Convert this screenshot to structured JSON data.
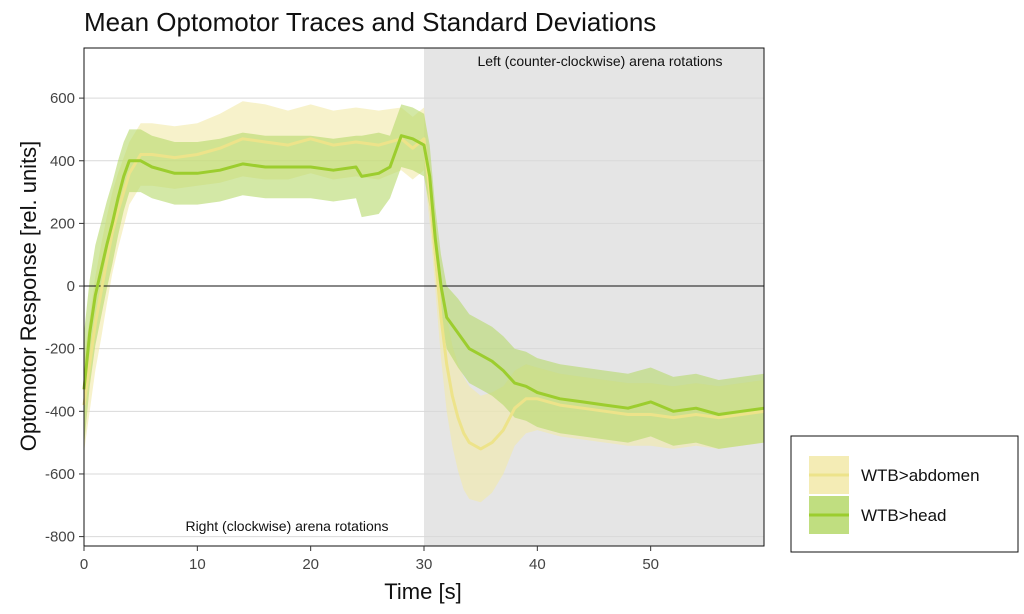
{
  "chart_data": {
    "type": "line",
    "title": "Mean Optomotor Traces and Standard Deviations",
    "xlabel": "Time [s]",
    "ylabel": "Optomotor Response [rel. units]",
    "xlim": [
      0,
      60
    ],
    "ylim": [
      -830,
      760
    ],
    "xticks": [
      0,
      10,
      20,
      30,
      40,
      50
    ],
    "yticks": [
      -800,
      -600,
      -400,
      -200,
      0,
      200,
      400,
      600
    ],
    "grid": true,
    "zero_line": true,
    "legend_position": "right",
    "shaded_region": {
      "x_start": 30,
      "x_end": 60,
      "color": "#e5e5e5"
    },
    "annotations": {
      "right_rotation": "Right (clockwise) arena rotations",
      "left_rotation": "Left (counter-clockwise) arena rotations"
    },
    "series": [
      {
        "name": "WTB>abdomen",
        "line_color": "#ede38a",
        "band_color": "#f2e9a8",
        "x": [
          0,
          0.5,
          1,
          1.5,
          2,
          2.5,
          3,
          3.5,
          4,
          5,
          6,
          8,
          10,
          12,
          14,
          16,
          18,
          20,
          22,
          24,
          26,
          28,
          29,
          30,
          30.5,
          31,
          31.5,
          32,
          32.5,
          33,
          33.5,
          34,
          35,
          36,
          37,
          38,
          39,
          40,
          42,
          44,
          46,
          48,
          50,
          52,
          54,
          56,
          58,
          60
        ],
        "mean": [
          -380,
          -250,
          -120,
          -20,
          80,
          170,
          240,
          300,
          360,
          420,
          420,
          410,
          420,
          440,
          470,
          460,
          450,
          470,
          450,
          460,
          450,
          470,
          440,
          470,
          300,
          100,
          -100,
          -250,
          -350,
          -420,
          -470,
          -500,
          -520,
          -500,
          -460,
          -390,
          -360,
          -360,
          -380,
          -390,
          -400,
          -410,
          -410,
          -420,
          -410,
          -420,
          -410,
          -400
        ],
        "sd": [
          150,
          150,
          150,
          150,
          140,
          130,
          120,
          110,
          100,
          100,
          100,
          100,
          100,
          110,
          120,
          120,
          110,
          110,
          110,
          110,
          110,
          100,
          100,
          100,
          100,
          110,
          130,
          150,
          160,
          170,
          180,
          180,
          170,
          160,
          140,
          120,
          110,
          100,
          100,
          100,
          100,
          100,
          100,
          100,
          100,
          100,
          100,
          100
        ]
      },
      {
        "name": "WTB>head",
        "line_color": "#9ccd2e",
        "band_color": "#b5d86a",
        "x": [
          0,
          0.5,
          1,
          1.5,
          2,
          2.5,
          3,
          3.5,
          4,
          5,
          6,
          8,
          10,
          12,
          14,
          16,
          18,
          20,
          22,
          24,
          24.5,
          26,
          27,
          28,
          29,
          30,
          30.5,
          31,
          31.5,
          32,
          33,
          34,
          35,
          36,
          37,
          38,
          39,
          40,
          42,
          44,
          46,
          48,
          50,
          52,
          54,
          56,
          58,
          60
        ],
        "mean": [
          -330,
          -150,
          -30,
          50,
          130,
          200,
          280,
          350,
          400,
          400,
          380,
          360,
          360,
          370,
          390,
          380,
          380,
          380,
          370,
          380,
          350,
          360,
          380,
          480,
          470,
          450,
          350,
          150,
          0,
          -100,
          -150,
          -200,
          -220,
          -240,
          -270,
          -310,
          -320,
          -340,
          -360,
          -370,
          -380,
          -390,
          -370,
          -400,
          -390,
          -410,
          -400,
          -390
        ],
        "sd": [
          180,
          170,
          160,
          150,
          140,
          130,
          120,
          110,
          100,
          100,
          100,
          100,
          100,
          100,
          100,
          100,
          100,
          100,
          100,
          100,
          130,
          130,
          100,
          100,
          100,
          100,
          100,
          100,
          100,
          100,
          110,
          110,
          110,
          110,
          110,
          110,
          110,
          110,
          110,
          110,
          110,
          110,
          110,
          110,
          110,
          110,
          110,
          110
        ]
      }
    ]
  }
}
